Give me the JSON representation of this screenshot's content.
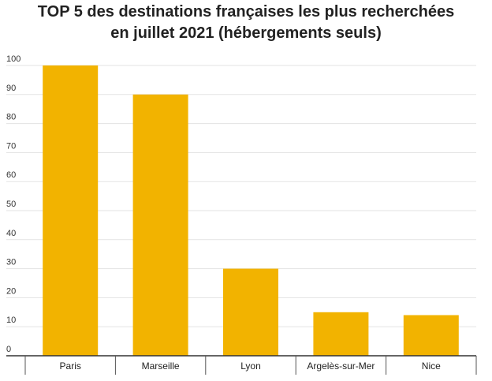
{
  "chart_data": {
    "type": "bar",
    "title": "TOP 5 des destinations françaises les plus recherchées en juillet 2021 (hébergements seuls)",
    "title_lines": [
      "TOP 5 des destinations françaises les plus recherchées",
      "en juillet 2021 (hébergements seuls)"
    ],
    "categories": [
      "Paris",
      "Marseille",
      "Lyon",
      "Argelès-sur-Mer",
      "Nice"
    ],
    "values": [
      100,
      90,
      30,
      15,
      14
    ],
    "xlabel": "",
    "ylabel": "",
    "ylim": [
      0,
      100
    ],
    "yticks": [
      0,
      10,
      20,
      30,
      40,
      50,
      60,
      70,
      80,
      90,
      100
    ],
    "grid": true,
    "legend": "none",
    "bar_color": "#F2B300",
    "grid_color": "#E3E3E3"
  }
}
